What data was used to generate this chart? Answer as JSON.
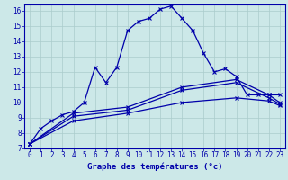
{
  "xlabel": "Graphe des températures (°c)",
  "background_color": "#cce8e8",
  "grid_color": "#aacccc",
  "line_color": "#0000aa",
  "border_color": "#0000aa",
  "xlim": [
    -0.5,
    23.5
  ],
  "ylim": [
    7,
    16.4
  ],
  "xticks": [
    0,
    1,
    2,
    3,
    4,
    5,
    6,
    7,
    8,
    9,
    10,
    11,
    12,
    13,
    14,
    15,
    16,
    17,
    18,
    19,
    20,
    21,
    22,
    23
  ],
  "yticks": [
    7,
    8,
    9,
    10,
    11,
    12,
    13,
    14,
    15,
    16
  ],
  "line1_x": [
    0,
    1,
    2,
    3,
    4,
    5,
    6,
    7,
    8,
    9,
    10,
    11,
    12,
    13,
    14,
    15,
    16,
    17,
    18,
    19,
    20,
    21,
    22,
    23
  ],
  "line1_y": [
    7.3,
    8.3,
    8.8,
    9.2,
    9.4,
    10.0,
    12.3,
    11.3,
    12.3,
    14.7,
    15.3,
    15.5,
    16.1,
    16.3,
    15.5,
    14.7,
    13.2,
    12.0,
    12.2,
    11.7,
    10.5,
    10.5,
    10.5,
    10.5
  ],
  "line2_x": [
    0,
    4,
    9,
    14,
    19,
    22,
    23
  ],
  "line2_y": [
    7.3,
    9.3,
    9.7,
    11.0,
    11.5,
    10.5,
    10.0
  ],
  "line3_x": [
    0,
    4,
    9,
    14,
    19,
    22,
    23
  ],
  "line3_y": [
    7.3,
    9.1,
    9.5,
    10.8,
    11.3,
    10.3,
    9.9
  ],
  "line4_x": [
    0,
    4,
    9,
    14,
    19,
    22,
    23
  ],
  "line4_y": [
    7.3,
    8.8,
    9.3,
    10.0,
    10.3,
    10.1,
    9.8
  ],
  "marker": "x",
  "markersize": 3,
  "linewidth": 0.9,
  "tick_fontsize": 5.5,
  "xlabel_fontsize": 6.5
}
